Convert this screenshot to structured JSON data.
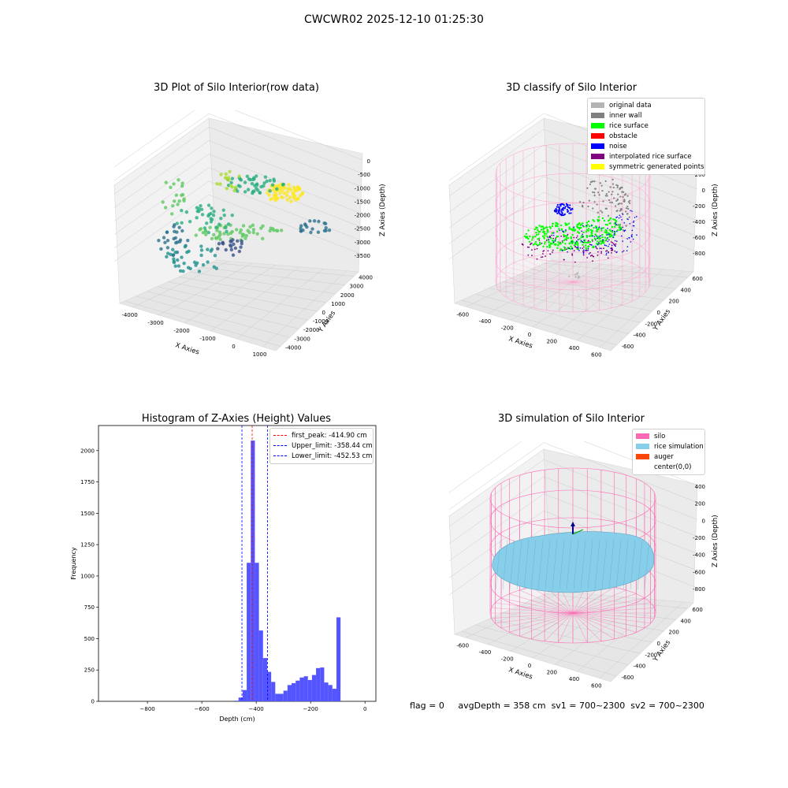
{
  "figure": {
    "title": "CWCWR02 2025-12-10 01:25:30",
    "footer": {
      "flag": "flag = 0",
      "avg_depth": "avgDepth = 358 cm",
      "sv1": "sv1 = 700~2300",
      "sv2": "sv2 = 700~2300"
    }
  },
  "chart_data": [
    {
      "type": "scatter",
      "title": "3D Plot of Silo Interior(row data)",
      "xlabel": "X Axies",
      "ylabel": "Y Axies",
      "zlabel": "Z Axies (Depth)",
      "x_ticks": [
        "-4000",
        "-3000",
        "-2000",
        "-1000",
        "0",
        "1000"
      ],
      "y_ticks": [
        "-4000",
        "-3000",
        "-2000",
        "-1000",
        "0",
        "1000",
        "2000",
        "3000",
        "4000"
      ],
      "z_ticks": [
        "0",
        "-500",
        "-1000",
        "-1500",
        "-2000",
        "-2500",
        "-3000",
        "-3500"
      ],
      "colormap": "viridis (color by depth)"
    },
    {
      "type": "scatter",
      "title": "3D classify of Silo Interior",
      "xlabel": "X Axies",
      "ylabel": "Y Axies",
      "zlabel": "Z Axies (Depth)",
      "x_ticks": [
        "-600",
        "-400",
        "-200",
        "0",
        "200",
        "400",
        "600"
      ],
      "y_ticks": [
        "-600",
        "-400",
        "-200",
        "0",
        "200",
        "400",
        "600"
      ],
      "z_ticks": [
        "200",
        "0",
        "-200",
        "-400",
        "-600",
        "-800"
      ],
      "legend": [
        {
          "label": "original data",
          "color": "#b3b3b3"
        },
        {
          "label": "inner wall",
          "color": "#808080"
        },
        {
          "label": "rice surface",
          "color": "#00ff00"
        },
        {
          "label": "obstacle",
          "color": "#ff0000"
        },
        {
          "label": "noise",
          "color": "#0000ff"
        },
        {
          "label": "interpolated rice surface",
          "color": "#800080"
        },
        {
          "label": "symmetric generated points",
          "color": "#ffff00"
        }
      ],
      "silo_color": "#ff9ecf"
    },
    {
      "type": "bar",
      "title": "Histogram of Z-Axies (Height) Values",
      "xlabel": "Depth (cm)",
      "ylabel": "Frequency",
      "xlim": [
        -980,
        40
      ],
      "ylim": [
        0,
        2200
      ],
      "x_ticks": [
        "−800",
        "−600",
        "−400",
        "−200",
        "0"
      ],
      "y_ticks": [
        "0",
        "250",
        "500",
        "750",
        "1000",
        "1250",
        "1500",
        "1750",
        "2000"
      ],
      "bin_width": 15,
      "bar_color": "#5555ff",
      "bins": [
        {
          "x": -480,
          "value": 5
        },
        {
          "x": -465,
          "value": 30
        },
        {
          "x": -450,
          "value": 90
        },
        {
          "x": -435,
          "value": 1105
        },
        {
          "x": -420,
          "value": 2080
        },
        {
          "x": -405,
          "value": 1105
        },
        {
          "x": -390,
          "value": 565
        },
        {
          "x": -375,
          "value": 345
        },
        {
          "x": -360,
          "value": 235
        },
        {
          "x": -345,
          "value": 155
        },
        {
          "x": -330,
          "value": 60
        },
        {
          "x": -315,
          "value": 60
        },
        {
          "x": -300,
          "value": 85
        },
        {
          "x": -285,
          "value": 130
        },
        {
          "x": -270,
          "value": 145
        },
        {
          "x": -255,
          "value": 165
        },
        {
          "x": -240,
          "value": 190
        },
        {
          "x": -225,
          "value": 200
        },
        {
          "x": -210,
          "value": 170
        },
        {
          "x": -195,
          "value": 210
        },
        {
          "x": -180,
          "value": 265
        },
        {
          "x": -165,
          "value": 270
        },
        {
          "x": -150,
          "value": 150
        },
        {
          "x": -135,
          "value": 130
        },
        {
          "x": -120,
          "value": 100
        },
        {
          "x": -105,
          "value": 670
        }
      ],
      "vlines": [
        {
          "label": "first_peak: -414.90 cm",
          "x": -414.9,
          "color": "#ff0000"
        },
        {
          "label": "Upper_limit: -358.44 cm",
          "x": -358.44,
          "color": "#0000ff"
        },
        {
          "label": "Lower_limit: -452.53 cm",
          "x": -452.53,
          "color": "#0000ff"
        }
      ]
    },
    {
      "type": "scatter",
      "title": "3D simulation of Silo Interior",
      "xlabel": "X Axies",
      "ylabel": "Y Axies",
      "zlabel": "Z Axies (Depth)",
      "x_ticks": [
        "-600",
        "-400",
        "-200",
        "0",
        "200",
        "400",
        "600"
      ],
      "y_ticks": [
        "-600",
        "-400",
        "-200",
        "0",
        "200",
        "400",
        "600"
      ],
      "z_ticks": [
        "400",
        "200",
        "0",
        "-200",
        "-400",
        "-600",
        "-800"
      ],
      "legend": [
        {
          "label": "silo",
          "color": "#ff69b4"
        },
        {
          "label": "rice simulation",
          "color": "#87ceeb"
        },
        {
          "label": "auger",
          "color": "#ff4500"
        },
        {
          "label": "center(0,0)",
          "color": ""
        }
      ]
    }
  ]
}
